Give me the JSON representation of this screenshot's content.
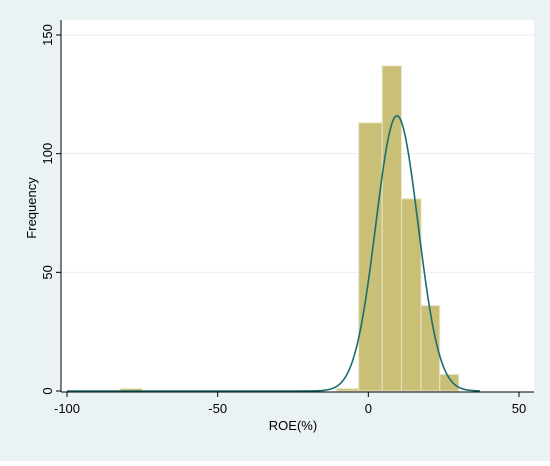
{
  "chart_data": {
    "type": "bar",
    "subtype": "histogram-with-normal-density",
    "title": "",
    "xlabel": "ROE(%)",
    "ylabel": "Frequency",
    "xlim": [
      -100,
      50
    ],
    "ylim": [
      0,
      150
    ],
    "xticks": [
      -100,
      -50,
      0,
      50
    ],
    "xtick_labels": [
      "-100",
      "-50",
      "0",
      "50"
    ],
    "yticks": [
      0,
      50,
      100,
      150
    ],
    "ytick_labels": [
      "0",
      "50",
      "100",
      "150"
    ],
    "grid": "horizontal",
    "legend": "none",
    "bins": [
      {
        "x0": -82.3,
        "x1": -75.1,
        "count": 1
      },
      {
        "x0": -10.5,
        "x1": -3.2,
        "count": 1
      },
      {
        "x0": -3.2,
        "x1": 4.6,
        "count": 113
      },
      {
        "x0": 4.6,
        "x1": 11.0,
        "count": 137
      },
      {
        "x0": 11.0,
        "x1": 17.5,
        "count": 81
      },
      {
        "x0": 17.5,
        "x1": 23.7,
        "count": 36
      },
      {
        "x0": 23.7,
        "x1": 30.0,
        "count": 7
      }
    ],
    "density_curve": {
      "type": "normal",
      "mean": 9.5,
      "sd": 7.0,
      "peak": 116,
      "x_range": [
        -100,
        37
      ]
    },
    "colors": {
      "background": "#eaf2f3",
      "plot_background": "#ffffff",
      "bar_fill": "#c9bf76",
      "bar_edge": "#eae6c6",
      "curve": "#1a6e6e",
      "grid": "#e6eef0",
      "axis": "#000000"
    }
  }
}
